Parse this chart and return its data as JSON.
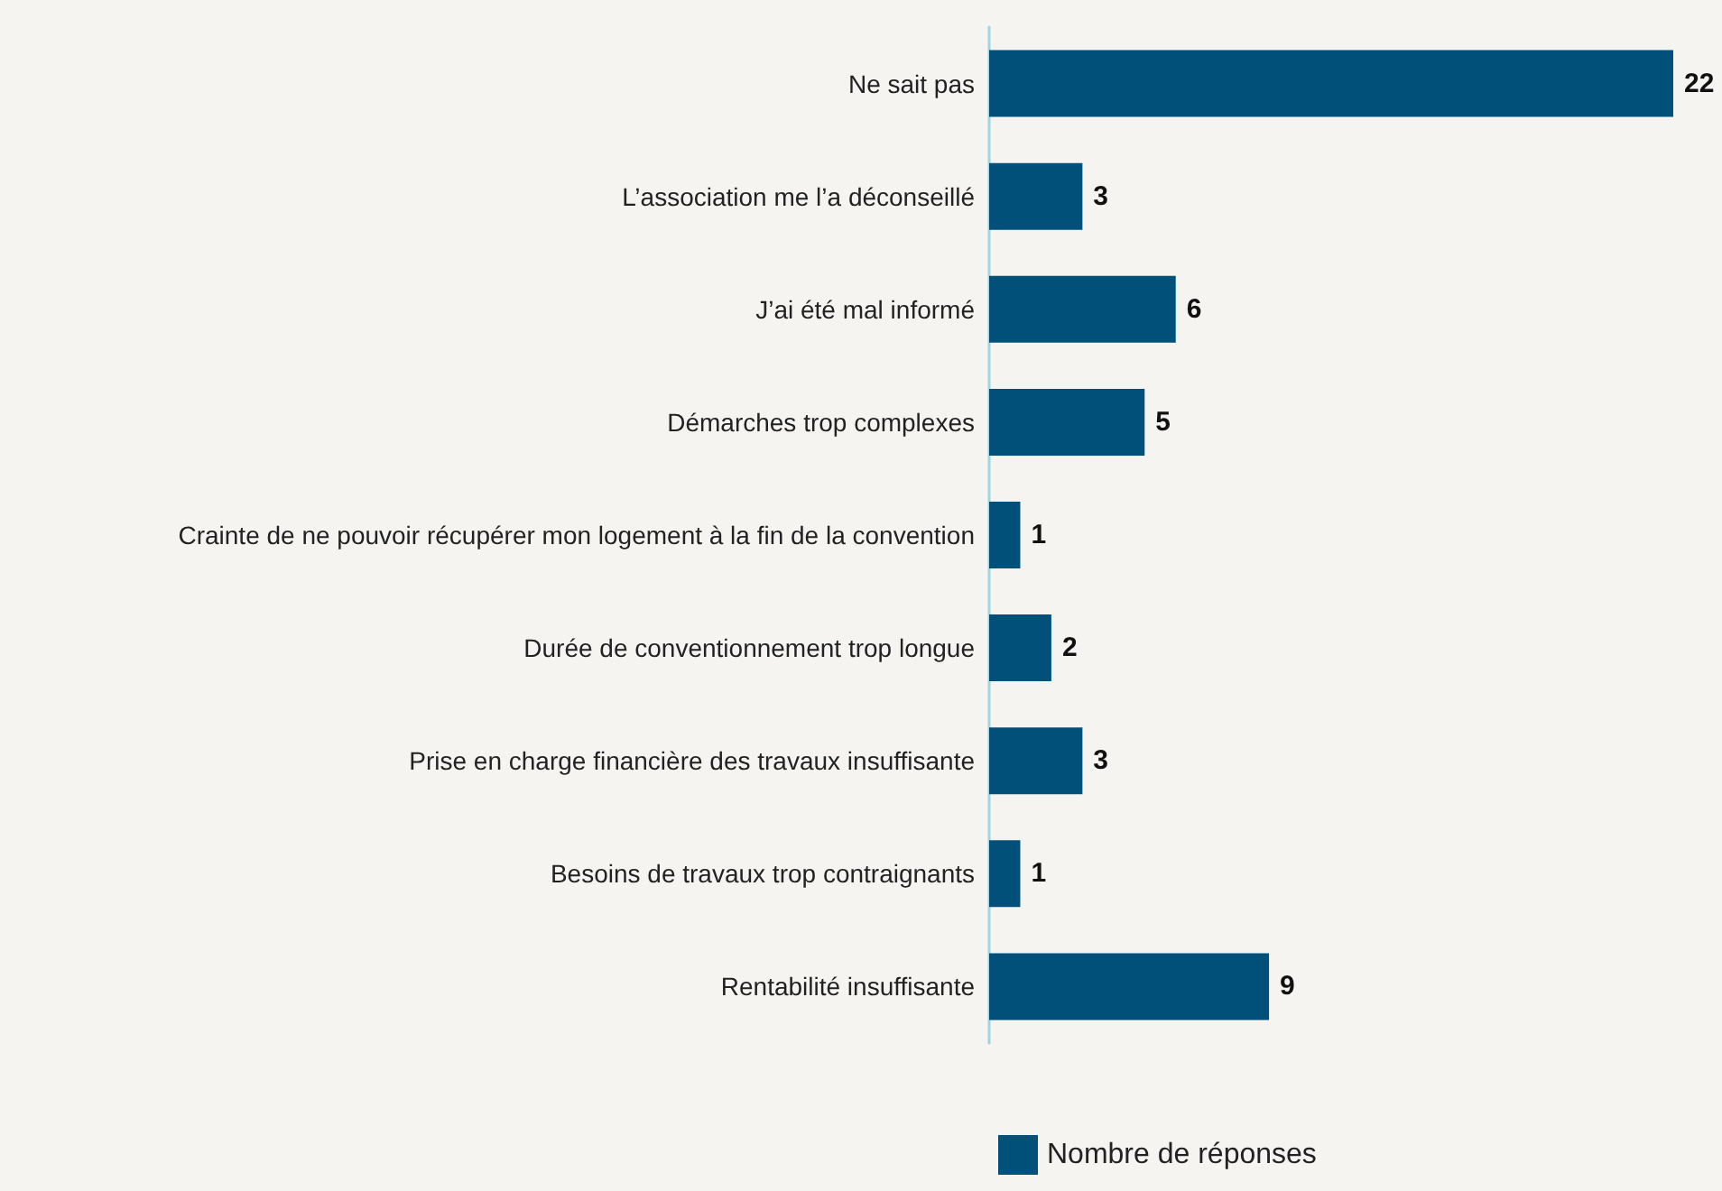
{
  "chart_data": {
    "type": "bar",
    "orientation": "horizontal",
    "categories": [
      "Ne sait pas",
      "L’association me l’a déconseillé",
      "J’ai été mal informé",
      "Démarches trop complexes",
      "Crainte de ne pouvoir récupérer mon logement à la fin de la convention",
      "Durée de conventionnement trop longue",
      "Prise en charge financière des travaux insuffisante",
      "Besoins de travaux trop contraignants",
      "Rentabilité insuffisante"
    ],
    "series": [
      {
        "name": "Nombre de réponses",
        "color": "#00507a",
        "values": [
          22,
          3,
          6,
          5,
          1,
          2,
          3,
          1,
          9
        ]
      }
    ],
    "data_labels": true,
    "legend": "bottom"
  }
}
